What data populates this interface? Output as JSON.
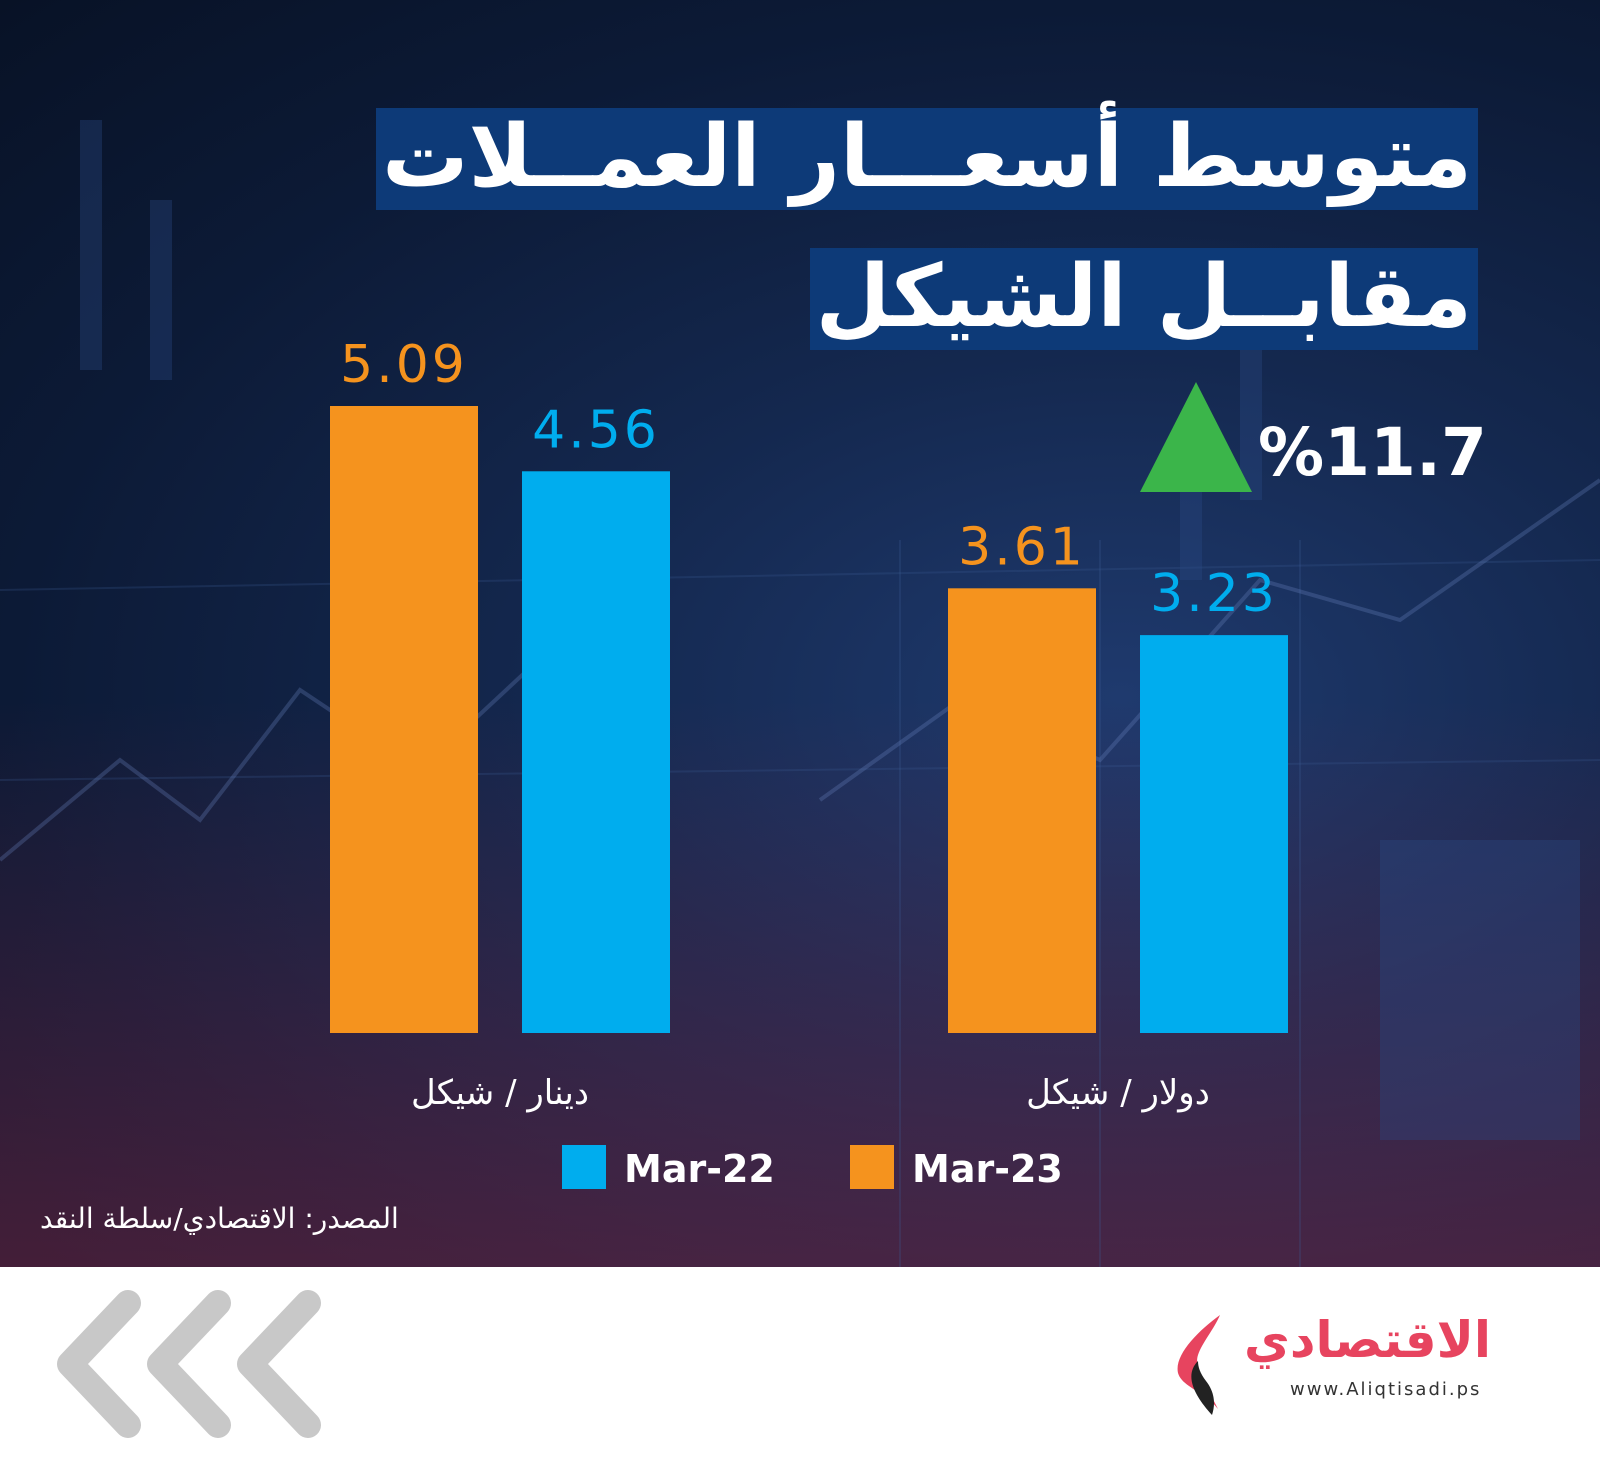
{
  "title": {
    "line1": "متوسط أسعـــار العمــلات",
    "line2": "مقابــل الشيكل"
  },
  "change": {
    "value": "%11.7",
    "direction": "up",
    "color": "#3bb54a"
  },
  "chart_data": {
    "type": "bar",
    "categories": [
      "دينار / شيكل",
      "دولار / شيكل"
    ],
    "series": [
      {
        "name": "Mar-23",
        "values": [
          5.09,
          3.61
        ],
        "labels": [
          "5.09",
          "3.61"
        ],
        "color": "#f5931e"
      },
      {
        "name": "Mar-22",
        "values": [
          4.56,
          3.23
        ],
        "labels": [
          "4.56",
          "3.23"
        ],
        "color": "#00adee"
      }
    ],
    "title": "",
    "xlabel": "",
    "ylabel": "",
    "ylim": [
      0,
      5.09
    ],
    "grid": false,
    "legend": "bottom"
  },
  "legend": [
    {
      "name": "Mar-22",
      "color": "#00adee"
    },
    {
      "name": "Mar-23",
      "color": "#f5931e"
    }
  ],
  "source": "المصدر: الاقتصادي/سلطة النقد",
  "footer": {
    "logo_text": "الاقتصادي",
    "logo_url": "www.Aliqtisadi.ps",
    "brand_color": "#e7445f",
    "chevron_color": "#c8c8c8"
  }
}
